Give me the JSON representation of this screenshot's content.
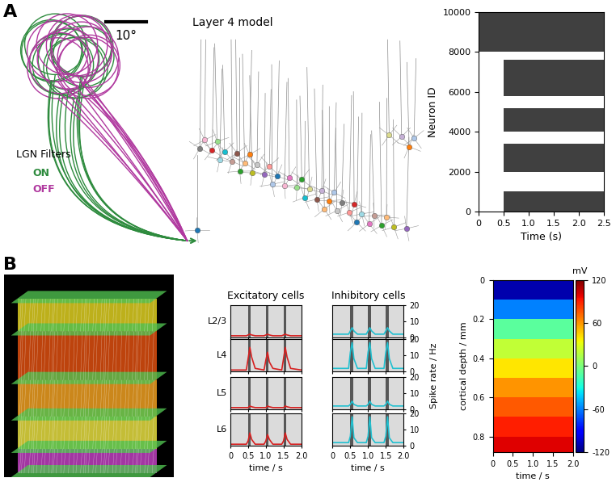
{
  "panel_labels": [
    "A",
    "B"
  ],
  "diagram": {
    "scale_bar": "10°",
    "lgn_title": "LGN Filters",
    "filters": [
      {
        "name": "ON",
        "color": "#2e8b3e"
      },
      {
        "name": "OFF",
        "color": "#b0399f"
      }
    ],
    "model_label": "Layer 4 model"
  },
  "chart_data": [
    {
      "type": "raster",
      "xlabel": "Time (s)",
      "ylabel": "Neuron ID",
      "color": "#000000",
      "xlim": [
        0,
        2.5
      ],
      "xticks": [
        0,
        0.5,
        {
          "value": 1,
          "label": "1.0"
        },
        1.5,
        {
          "value": 2,
          "label": "2.0"
        },
        2.5
      ],
      "ylim": [
        0,
        10000
      ],
      "yticks": [
        0,
        2000,
        4000,
        6000,
        8000,
        10000
      ],
      "bands": [
        {
          "ids": [
            8000,
            10000
          ],
          "times": [
            0,
            2.5
          ]
        },
        {
          "ids": [
            5800,
            7600
          ],
          "times": [
            0.5,
            2.5
          ]
        },
        {
          "ids": [
            4000,
            5200
          ],
          "times": [
            0.5,
            2.5
          ]
        },
        {
          "ids": [
            2000,
            3400
          ],
          "times": [
            0.5,
            2.5
          ]
        },
        {
          "ids": [
            0,
            1000
          ],
          "times": [
            0.5,
            2.5
          ]
        }
      ]
    },
    {
      "type": "raster_rates",
      "columns": [
        {
          "title": "Excitatory cells",
          "color": "#d62020"
        },
        {
          "title": "Inhibitory cells",
          "color": "#20c0d0"
        }
      ],
      "rows": [
        "L2/3",
        "L4",
        "L5",
        "L6"
      ],
      "xlabel": "time / s",
      "ylabel": "Spike rate / Hz",
      "xlim": [
        0,
        2
      ],
      "xticks": [
        0,
        0.5,
        {
          "value": 1,
          "label": "1.0"
        },
        1.5,
        {
          "value": 2,
          "label": "2.0"
        }
      ],
      "ylim": [
        0,
        20
      ],
      "yticks": [
        0,
        10,
        20
      ],
      "events": [
        0.5,
        1.0,
        1.5
      ],
      "x": [
        0,
        0.45,
        0.5,
        0.55,
        0.6,
        0.7,
        0.95,
        1.0,
        1.05,
        1.1,
        1.2,
        1.45,
        1.5,
        1.55,
        1.6,
        1.7,
        2.0
      ],
      "series": [
        {
          "row": "L2/3",
          "column": "Excitatory cells",
          "values": [
            1,
            1,
            1.5,
            2,
            1.5,
            1,
            1,
            1.5,
            2,
            1.5,
            1,
            1,
            1.5,
            2,
            1.5,
            1,
            1
          ]
        },
        {
          "row": "L2/3",
          "column": "Inhibitory cells",
          "values": [
            2,
            2,
            4,
            6,
            4,
            2,
            2,
            4,
            6,
            4,
            2,
            2,
            4,
            6,
            4,
            2,
            2
          ]
        },
        {
          "row": "L4",
          "column": "Excitatory cells",
          "values": [
            1,
            1,
            8,
            15,
            9,
            2,
            1,
            7,
            12,
            6,
            2,
            1,
            8,
            15,
            9,
            2,
            1
          ]
        },
        {
          "row": "L4",
          "column": "Inhibitory cells",
          "values": [
            2,
            2,
            12,
            18,
            8,
            2,
            2,
            12,
            18,
            8,
            2,
            2,
            12,
            18,
            8,
            2,
            2
          ]
        },
        {
          "row": "L5",
          "column": "Excitatory cells",
          "values": [
            1,
            1,
            1,
            2,
            1.5,
            1,
            1,
            1,
            2,
            1.5,
            1,
            1,
            1,
            2,
            1.5,
            1,
            1
          ]
        },
        {
          "row": "L5",
          "column": "Inhibitory cells",
          "values": [
            2,
            2,
            3,
            5,
            3,
            2,
            2,
            3,
            5,
            3,
            2,
            2,
            3,
            5,
            3,
            2,
            2
          ]
        },
        {
          "row": "L6",
          "column": "Excitatory cells",
          "values": [
            1,
            1,
            3,
            8,
            4,
            1,
            1,
            3,
            7,
            4,
            1,
            1,
            3,
            8,
            4,
            1,
            1
          ]
        },
        {
          "row": "L6",
          "column": "Inhibitory cells",
          "values": [
            2,
            2,
            6,
            18,
            5,
            2,
            2,
            6,
            18,
            5,
            2,
            2,
            6,
            18,
            5,
            2,
            2
          ]
        }
      ]
    },
    {
      "type": "heatmap",
      "xlabel": "time / s",
      "ylabel": "cortical depth / mm",
      "xlim": [
        0,
        2
      ],
      "xticks": [
        0,
        0.5,
        {
          "value": 1,
          "label": "1.0"
        },
        1.5,
        {
          "value": 2,
          "label": "2.0"
        }
      ],
      "ylim": [
        0.88,
        0
      ],
      "yticks": [
        0,
        0.2,
        0.4,
        0.6,
        0.8
      ],
      "time_edges": [
        0,
        2
      ],
      "depth_edges": [
        0,
        0.1,
        0.2,
        0.3,
        0.4,
        0.5,
        0.6,
        0.7,
        0.8,
        0.9
      ],
      "cells": [
        [
          -110
        ],
        [
          -60
        ],
        [
          -10
        ],
        [
          20
        ],
        [
          40
        ],
        [
          60
        ],
        [
          75
        ],
        [
          90
        ],
        [
          100
        ]
      ],
      "colorbar": {
        "label": "mV",
        "range": [
          -120,
          120
        ],
        "ticks": [
          -120,
          -60,
          0,
          60,
          120
        ]
      }
    }
  ]
}
